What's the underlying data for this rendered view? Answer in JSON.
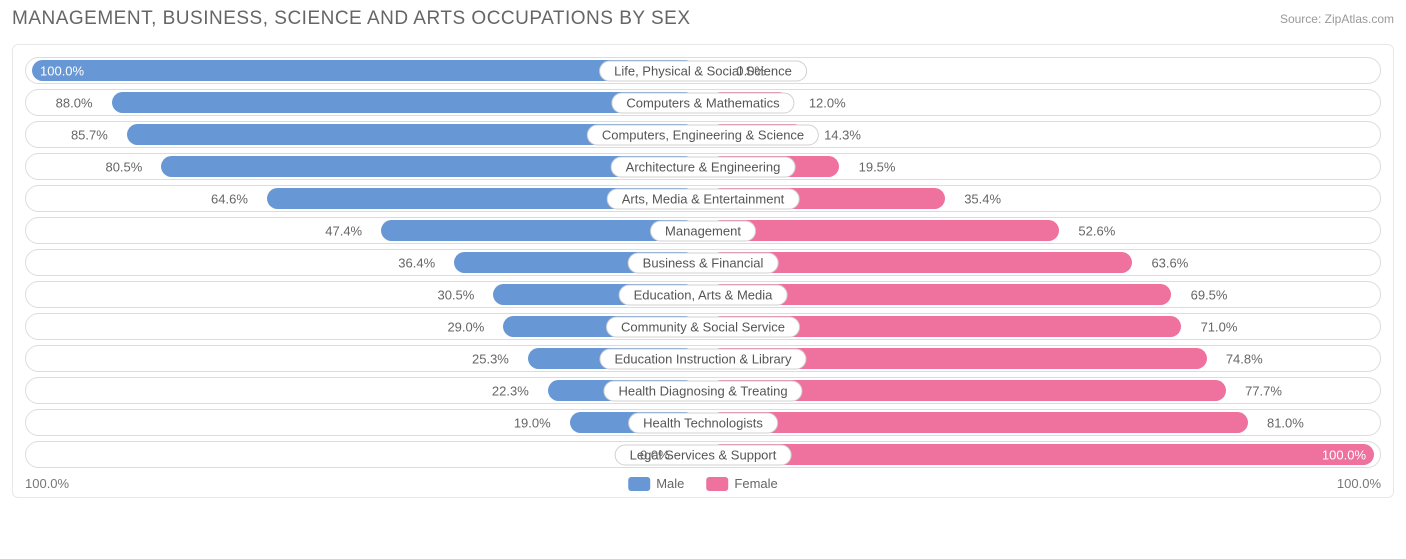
{
  "title": "MANAGEMENT, BUSINESS, SCIENCE AND ARTS OCCUPATIONS BY SEX",
  "source": "Source: ZipAtlas.com",
  "chart": {
    "type": "diverging-bar",
    "male_color": "#6897d6",
    "female_color": "#ee719e",
    "track_border_color": "#dcdcdc",
    "track_background": "#ffffff",
    "label_background": "#ffffff",
    "label_border_color": "#d0d0d0",
    "text_color_on_bar": "#ffffff",
    "text_color_off_bar": "#666666",
    "title_color": "#666666",
    "source_color": "#999999",
    "rows": [
      {
        "label": "Life, Physical & Social Science",
        "male": 100.0,
        "female": 0.0
      },
      {
        "label": "Computers & Mathematics",
        "male": 88.0,
        "female": 12.0
      },
      {
        "label": "Computers, Engineering & Science",
        "male": 85.7,
        "female": 14.3
      },
      {
        "label": "Architecture & Engineering",
        "male": 80.5,
        "female": 19.5
      },
      {
        "label": "Arts, Media & Entertainment",
        "male": 64.6,
        "female": 35.4
      },
      {
        "label": "Management",
        "male": 47.4,
        "female": 52.6
      },
      {
        "label": "Business & Financial",
        "male": 36.4,
        "female": 63.6
      },
      {
        "label": "Education, Arts & Media",
        "male": 30.5,
        "female": 69.5
      },
      {
        "label": "Community & Social Service",
        "male": 29.0,
        "female": 71.0
      },
      {
        "label": "Education Instruction & Library",
        "male": 25.3,
        "female": 74.8
      },
      {
        "label": "Health Diagnosing & Treating",
        "male": 22.3,
        "female": 77.7
      },
      {
        "label": "Health Technologists",
        "male": 19.0,
        "female": 81.0
      },
      {
        "label": "Legal Services & Support",
        "male": 0.0,
        "female": 100.0
      }
    ],
    "axis": {
      "left": "100.0%",
      "right": "100.0%"
    },
    "legend": {
      "male": "Male",
      "female": "Female"
    }
  }
}
